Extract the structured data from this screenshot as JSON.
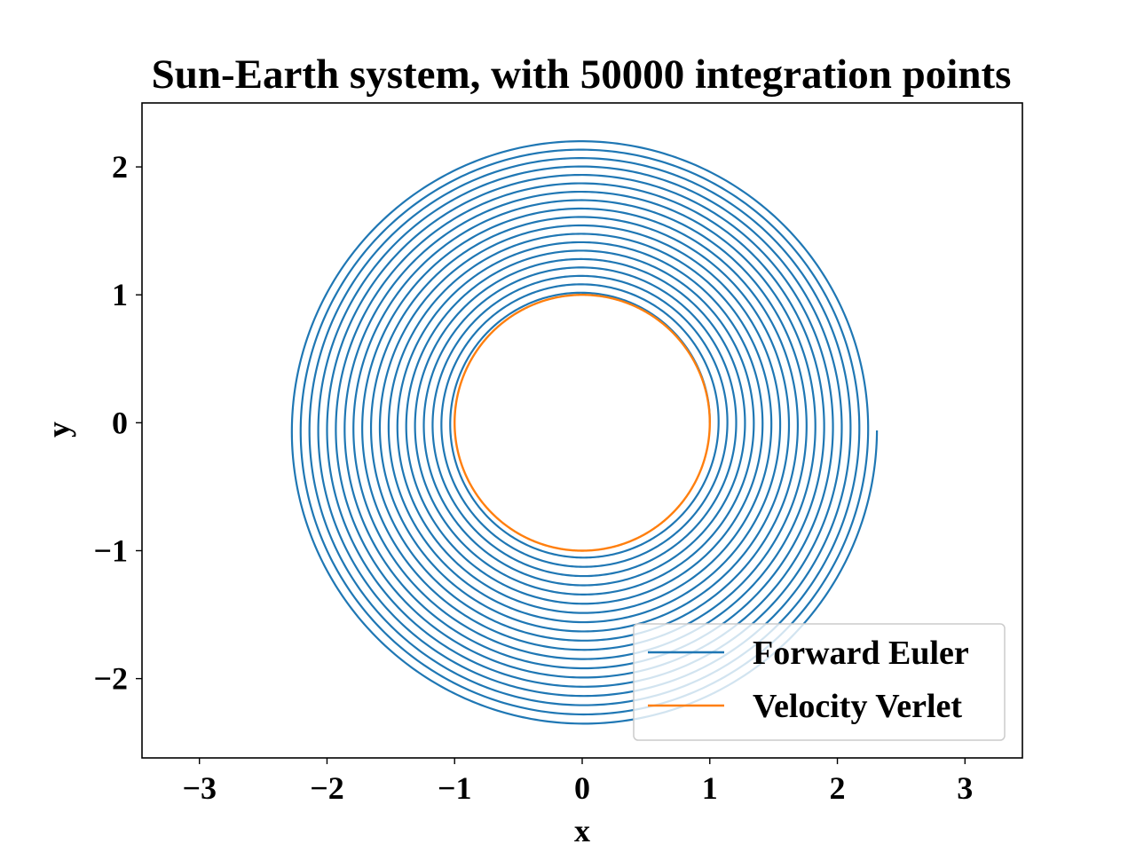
{
  "chart_data": {
    "type": "line",
    "title": "Sun-Earth system, with 50000 integration points",
    "xlabel": "x",
    "ylabel": "y",
    "xlim": [
      -3.45,
      3.45
    ],
    "ylim": [
      -2.62,
      2.5
    ],
    "xticks": [
      -3,
      -2,
      -1,
      0,
      1,
      2,
      3
    ],
    "yticks": [
      -2,
      -1,
      0,
      1,
      2
    ],
    "xtick_labels": [
      "−3",
      "−2",
      "−1",
      "0",
      "1",
      "2",
      "3"
    ],
    "ytick_labels": [
      "−2",
      "−1",
      "0",
      "1",
      "2"
    ],
    "grid": false,
    "legend_position": "lower-right",
    "series": [
      {
        "name": "Forward Euler",
        "color": "#1f77b4",
        "shape": "expanding spiral",
        "start": [
          1.0,
          0.0
        ],
        "radius_start": 1.0,
        "radius_end": 2.31,
        "revolutions": 19
      },
      {
        "name": "Velocity Verlet",
        "color": "#ff7f0e",
        "shape": "closed circle",
        "center": [
          0.0,
          0.0
        ],
        "radius": 1.0
      }
    ]
  }
}
